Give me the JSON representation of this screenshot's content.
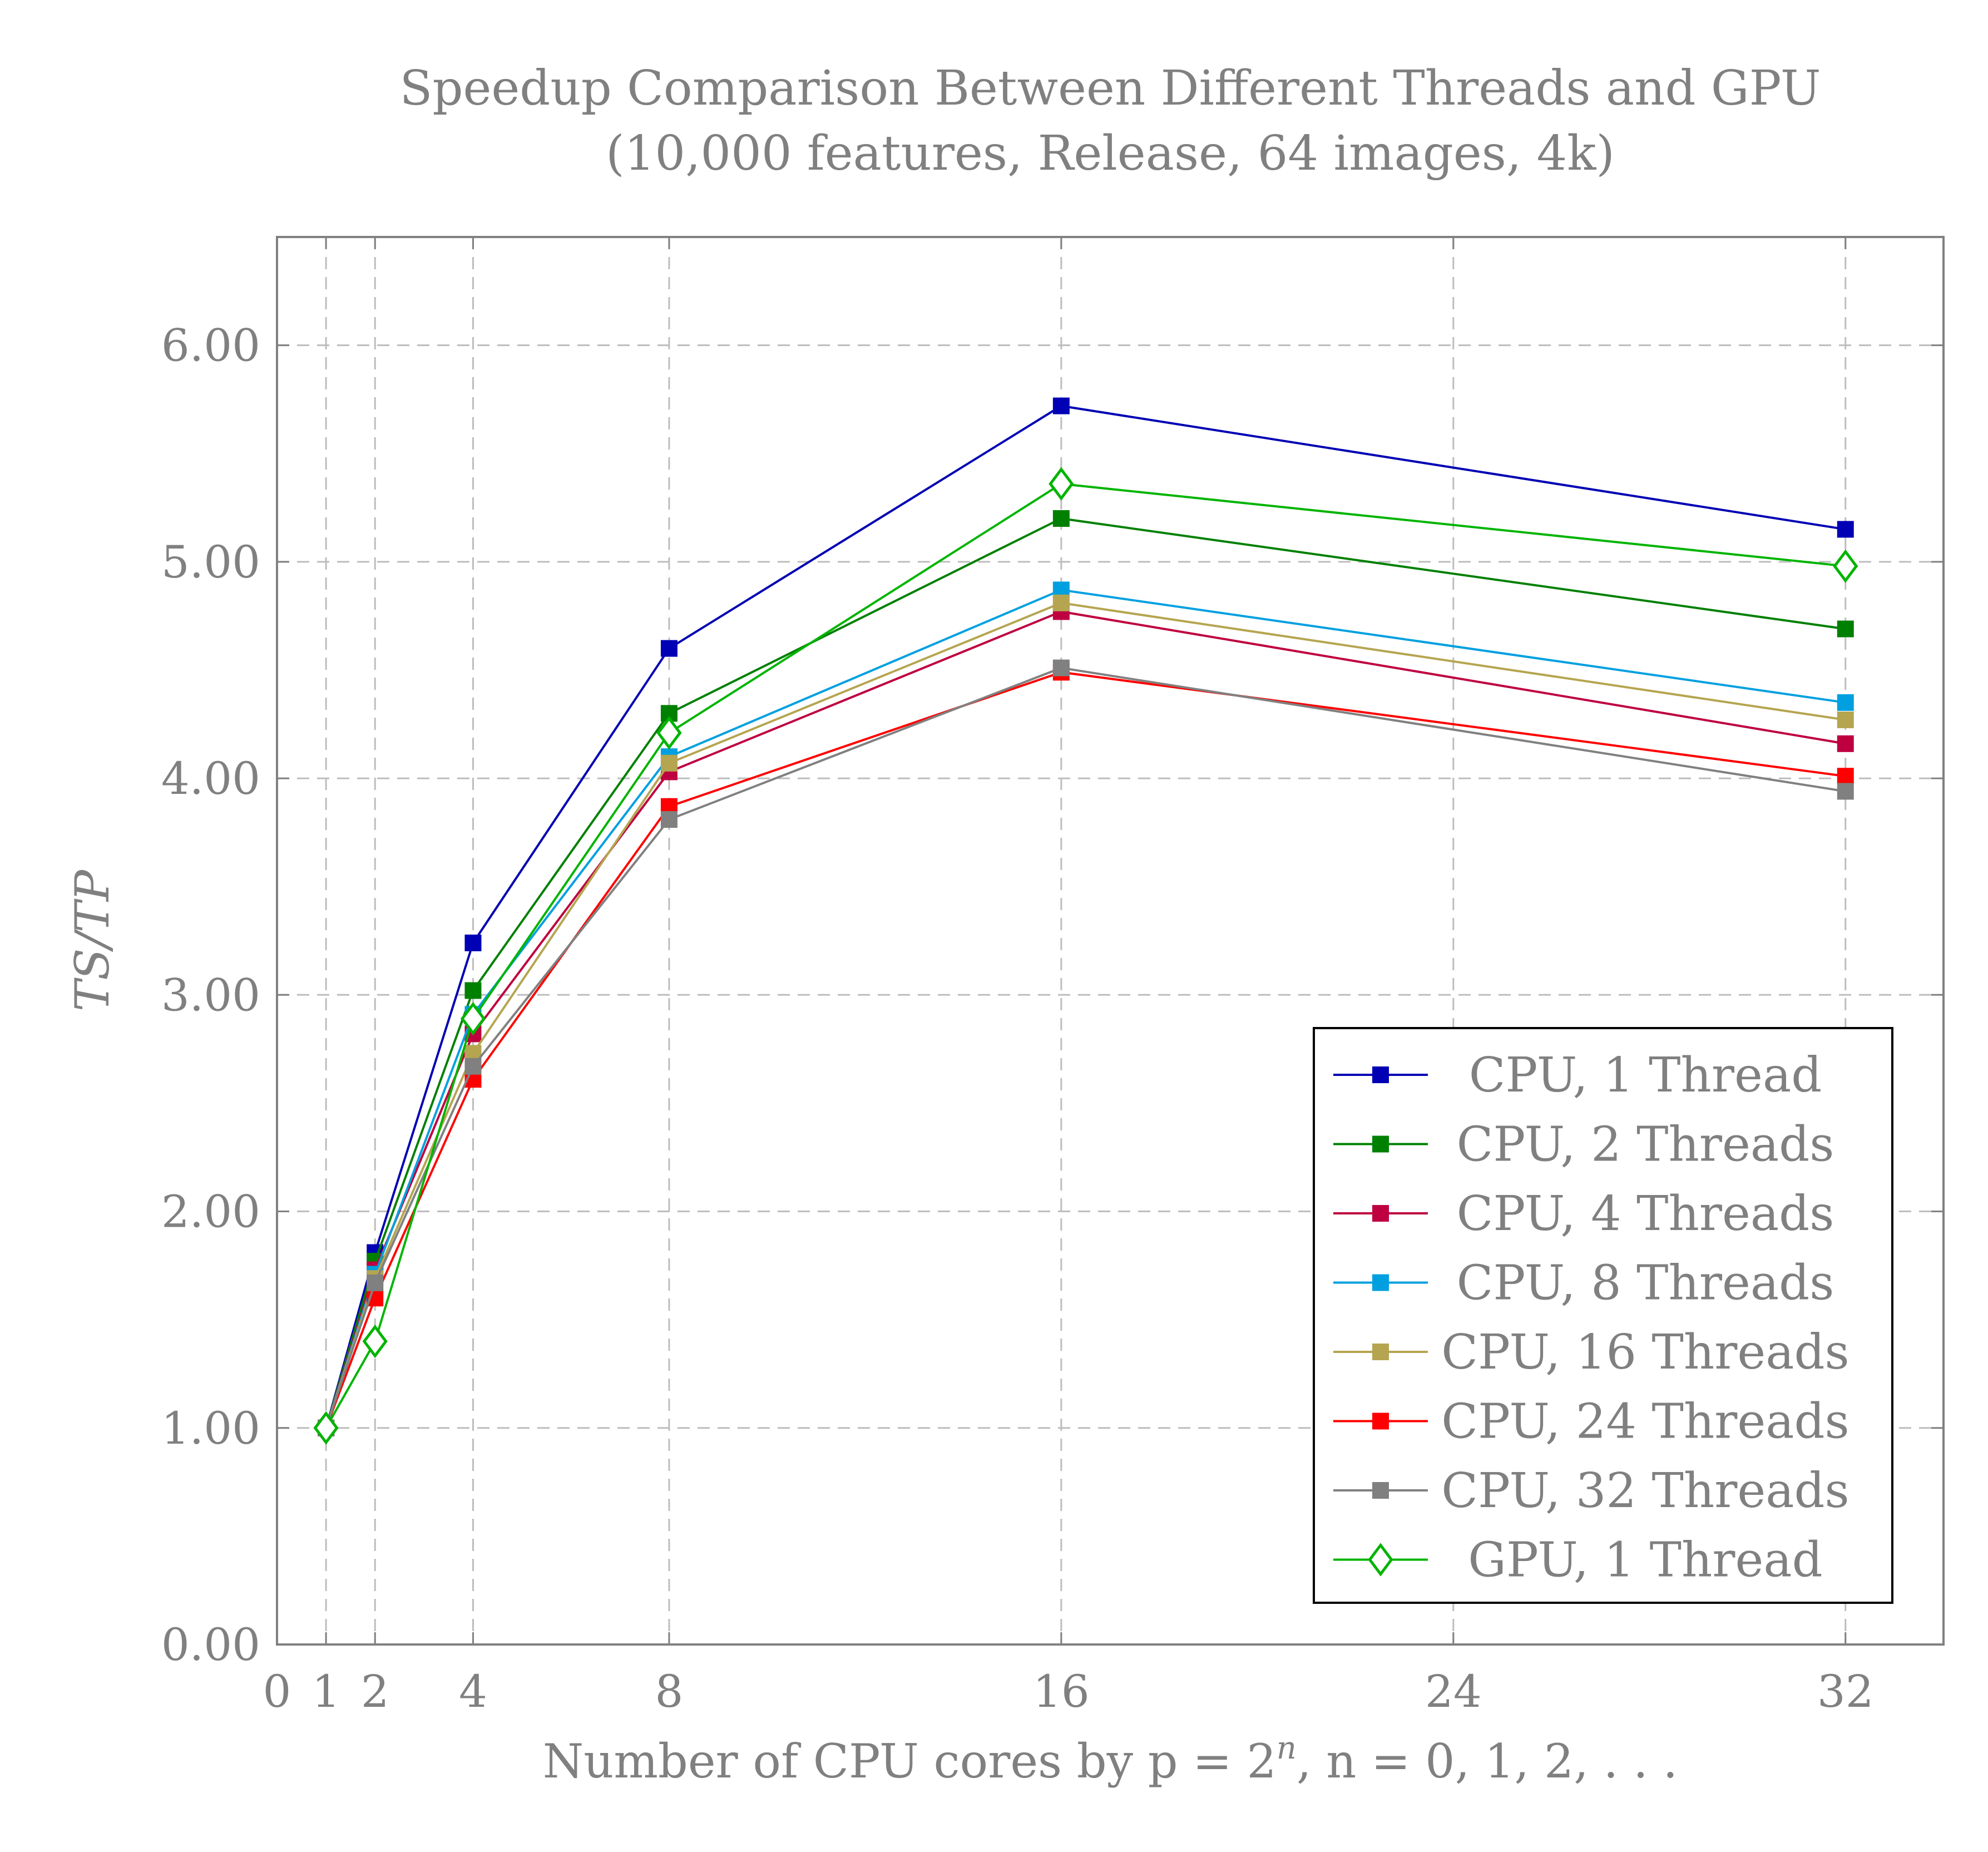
{
  "chart_data": {
    "type": "line",
    "title": "Speedup Comparison Between Different Threads and GPU",
    "subtitle": "(10,000 features, Release, 64 images, 4k)",
    "xlabel": "Number of CPU cores by p = 2^n, n = 0, 1, 2, …",
    "xlabel_display": "Number of CPU cores by p = 2",
    "xlabel_sup": "n",
    "xlabel_tail": ", n = 0, 1, 2, . . .",
    "ylabel": "T_S / T_P",
    "ylabel_display": "TS/TP",
    "xlim": [
      0,
      34
    ],
    "ylim": [
      0,
      6.5
    ],
    "x_ticks": [
      0,
      1,
      2,
      4,
      8,
      16,
      24,
      32
    ],
    "x_tick_labels": [
      "0",
      "1",
      "2",
      "4",
      "8",
      "16",
      "24",
      "32"
    ],
    "x_grid": [
      1,
      2,
      4,
      8,
      16,
      24,
      32
    ],
    "y_ticks": [
      0,
      1,
      2,
      3,
      4,
      5,
      6
    ],
    "y_tick_labels": [
      "0.00",
      "1.00",
      "2.00",
      "3.00",
      "4.00",
      "5.00",
      "6.00"
    ],
    "grid": true,
    "legend_position": "bottom-right",
    "x": [
      1,
      2,
      4,
      8,
      16,
      32
    ],
    "series": [
      {
        "name": "CPU, 1 Thread",
        "color": "#0000b4",
        "marker": "square",
        "values": [
          1.0,
          1.81,
          3.24,
          4.6,
          5.72,
          5.15
        ]
      },
      {
        "name": "CPU, 2 Threads",
        "color": "#008000",
        "marker": "square",
        "values": [
          1.0,
          1.77,
          3.02,
          4.3,
          5.2,
          4.69
        ]
      },
      {
        "name": "CPU, 4 Threads",
        "color": "#bf0040",
        "marker": "square",
        "values": [
          1.0,
          1.73,
          2.82,
          4.03,
          4.77,
          4.16
        ]
      },
      {
        "name": "CPU, 8 Threads",
        "color": "#00a0e0",
        "marker": "square",
        "values": [
          1.0,
          1.71,
          2.91,
          4.1,
          4.87,
          4.35
        ]
      },
      {
        "name": "CPU, 16 Threads",
        "color": "#b5a550",
        "marker": "square",
        "values": [
          1.0,
          1.69,
          2.73,
          4.07,
          4.81,
          4.27
        ]
      },
      {
        "name": "CPU, 24 Threads",
        "color": "#ff0000",
        "marker": "square",
        "values": [
          1.0,
          1.6,
          2.61,
          3.87,
          4.49,
          4.01
        ]
      },
      {
        "name": "CPU, 32 Threads",
        "color": "#808080",
        "marker": "square",
        "values": [
          1.0,
          1.67,
          2.67,
          3.81,
          4.51,
          3.94
        ]
      },
      {
        "name": "GPU, 1 Thread",
        "color": "#00b400",
        "marker": "diamond-open",
        "values": [
          1.0,
          1.4,
          2.89,
          4.21,
          5.36,
          4.98
        ]
      }
    ]
  }
}
